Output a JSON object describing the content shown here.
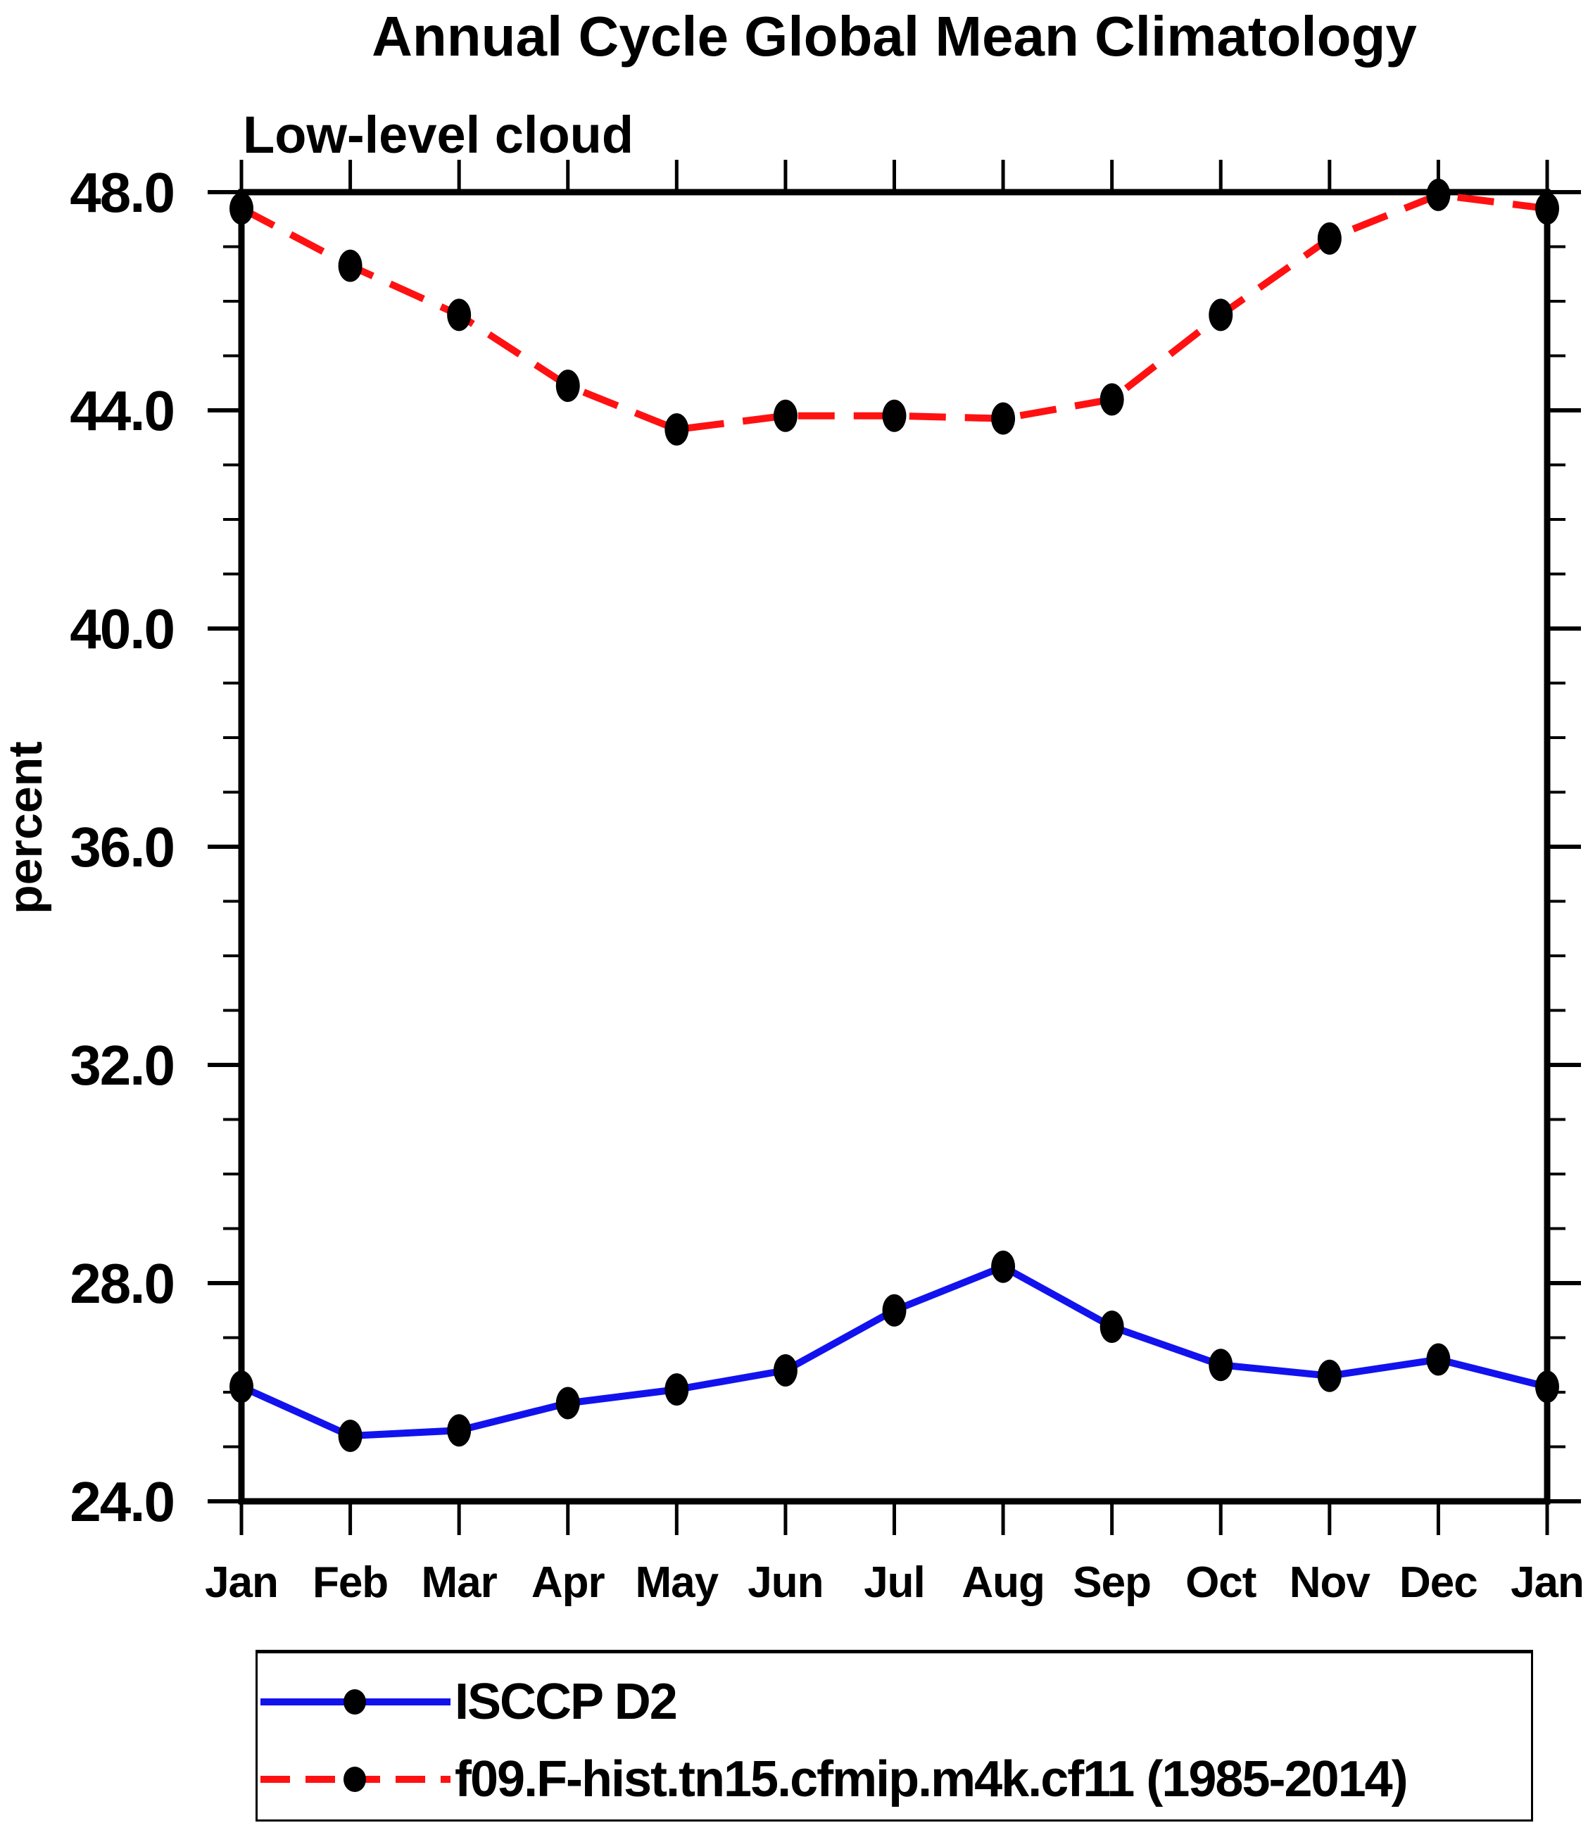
{
  "title": "Annual Cycle Global Mean Climatology",
  "subtitle": "Low-level cloud",
  "y_axis": {
    "label": "percent",
    "ticks": [
      "48.0",
      "44.0",
      "40.0",
      "36.0",
      "32.0",
      "28.0",
      "24.0"
    ],
    "major_step": 4,
    "minor_step": 1
  },
  "x_axis": {
    "labels": [
      "Jan",
      "Feb",
      "Mar",
      "Apr",
      "May",
      "Jun",
      "Jul",
      "Aug",
      "Sep",
      "Oct",
      "Nov",
      "Dec",
      "Jan"
    ]
  },
  "legend": {
    "items": [
      {
        "label": "ISCCP D2",
        "color": "#1212ee",
        "style": "solid",
        "marker": "filled-dot"
      },
      {
        "label": "f09.F-hist.tn15.cfmip.m4k.cf11 (1985-2014)",
        "color": "#ff1111",
        "style": "dashed",
        "marker": "filled-dot"
      }
    ]
  },
  "colors": {
    "blue_series": "#1212ee",
    "red_series": "#ff1111",
    "marker": "#000000",
    "axis": "#000000",
    "background": "#ffffff"
  },
  "chart_data": {
    "type": "line",
    "title": "Annual Cycle Global Mean Climatology",
    "subtitle": "Low-level cloud",
    "ylabel": "percent",
    "ylim": [
      24,
      48
    ],
    "grid": false,
    "legend_position": "bottom",
    "x": [
      "Jan",
      "Feb",
      "Mar",
      "Apr",
      "May",
      "Jun",
      "Jul",
      "Aug",
      "Sep",
      "Oct",
      "Nov",
      "Dec",
      "Jan"
    ],
    "series": [
      {
        "name": "ISCCP D2",
        "color": "#1212ee",
        "dash": "solid",
        "marker": "filled-dot",
        "values": [
          26.1,
          25.2,
          25.3,
          25.8,
          26.05,
          26.4,
          27.5,
          28.3,
          27.2,
          26.5,
          26.3,
          26.6,
          26.1
        ]
      },
      {
        "name": "f09.F-hist.tn15.cfmip.m4k.cf11 (1985-2014)",
        "color": "#ff1111",
        "dash": "dashed",
        "marker": "filled-dot",
        "values": [
          47.7,
          46.65,
          45.75,
          44.45,
          43.65,
          43.9,
          43.9,
          43.85,
          44.2,
          45.75,
          47.15,
          47.95,
          47.7
        ]
      }
    ]
  }
}
